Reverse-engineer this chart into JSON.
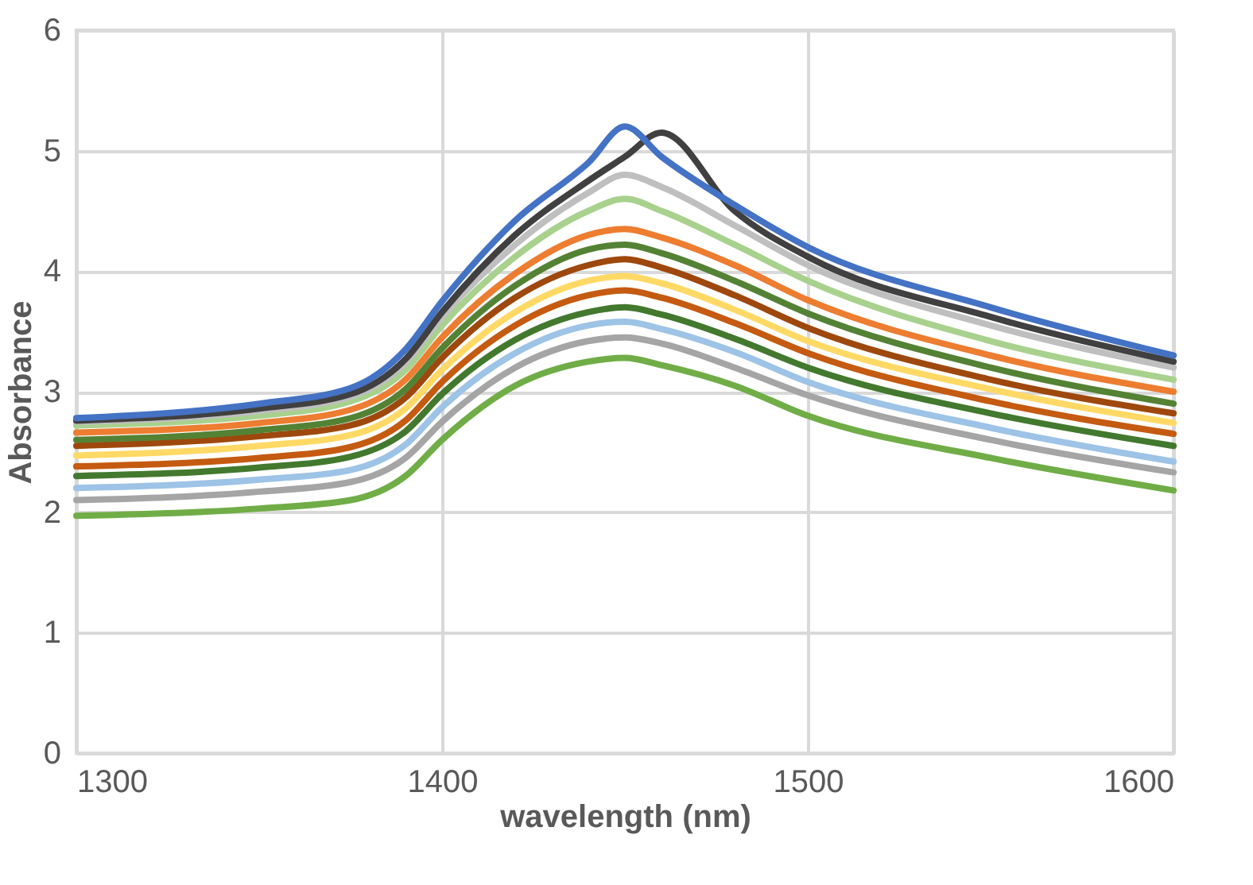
{
  "chart_data": {
    "type": "line",
    "xlabel": "wavelength (nm)",
    "ylabel": "Absorbance",
    "x": [
      1300,
      1350,
      1375,
      1390,
      1400,
      1420,
      1440,
      1450,
      1460,
      1480,
      1500,
      1550,
      1600
    ],
    "xlim": [
      1300,
      1600
    ],
    "xticks": [
      1300,
      1400,
      1500,
      1600
    ],
    "ylim": [
      0,
      6
    ],
    "yticks": [
      0,
      1,
      2,
      3,
      4,
      5,
      6
    ],
    "grid": true,
    "legend": false,
    "marker": "none",
    "line_style": "solid",
    "series": [
      {
        "color": "#70ad47",
        "values": [
          1.97,
          2.03,
          2.1,
          2.3,
          2.6,
          3.05,
          3.25,
          3.28,
          3.22,
          3.05,
          2.8,
          2.45,
          2.18
        ]
      },
      {
        "color": "#a5a5a5",
        "values": [
          2.1,
          2.17,
          2.25,
          2.45,
          2.75,
          3.2,
          3.42,
          3.45,
          3.4,
          3.2,
          2.97,
          2.6,
          2.33
        ]
      },
      {
        "color": "#9dc3e6",
        "values": [
          2.2,
          2.27,
          2.35,
          2.56,
          2.87,
          3.32,
          3.55,
          3.58,
          3.52,
          3.33,
          3.08,
          2.7,
          2.42
        ]
      },
      {
        "color": "#43792e",
        "values": [
          2.3,
          2.37,
          2.46,
          2.67,
          2.98,
          3.43,
          3.66,
          3.7,
          3.64,
          3.44,
          3.2,
          2.82,
          2.55
        ]
      },
      {
        "color": "#c55a11",
        "values": [
          2.38,
          2.45,
          2.54,
          2.76,
          3.08,
          3.55,
          3.8,
          3.84,
          3.78,
          3.57,
          3.32,
          2.92,
          2.65
        ]
      },
      {
        "color": "#ffd966",
        "values": [
          2.47,
          2.55,
          2.64,
          2.86,
          3.18,
          3.66,
          3.92,
          3.96,
          3.9,
          3.68,
          3.42,
          3.02,
          2.74
        ]
      },
      {
        "color": "#9e480e",
        "values": [
          2.55,
          2.63,
          2.72,
          2.95,
          3.28,
          3.78,
          4.05,
          4.1,
          4.03,
          3.8,
          3.53,
          3.1,
          2.82
        ]
      },
      {
        "color": "#548235",
        "values": [
          2.6,
          2.68,
          2.78,
          3.02,
          3.36,
          3.88,
          4.18,
          4.22,
          4.15,
          3.92,
          3.65,
          3.2,
          2.9
        ]
      },
      {
        "color": "#ed7d31",
        "values": [
          2.66,
          2.74,
          2.85,
          3.1,
          3.45,
          3.98,
          4.3,
          4.35,
          4.28,
          4.05,
          3.76,
          3.3,
          3.0
        ]
      },
      {
        "color": "#a9d18e",
        "values": [
          2.72,
          2.8,
          2.92,
          3.18,
          3.55,
          4.12,
          4.5,
          4.6,
          4.5,
          4.22,
          3.92,
          3.42,
          3.1
        ]
      },
      {
        "color": "#bfbfbf",
        "values": [
          2.75,
          2.84,
          2.96,
          3.24,
          3.62,
          4.22,
          4.65,
          4.8,
          4.7,
          4.38,
          4.05,
          3.55,
          3.2
        ]
      },
      {
        "color": "#404040",
        "values": [
          2.76,
          2.86,
          2.98,
          3.27,
          3.66,
          4.3,
          4.75,
          4.95,
          5.15,
          4.5,
          4.12,
          3.62,
          3.25
        ]
      },
      {
        "color": "#4472c4",
        "values": [
          2.78,
          2.9,
          3.03,
          3.35,
          3.75,
          4.42,
          4.9,
          5.2,
          4.95,
          4.55,
          4.2,
          3.7,
          3.3
        ]
      }
    ]
  }
}
